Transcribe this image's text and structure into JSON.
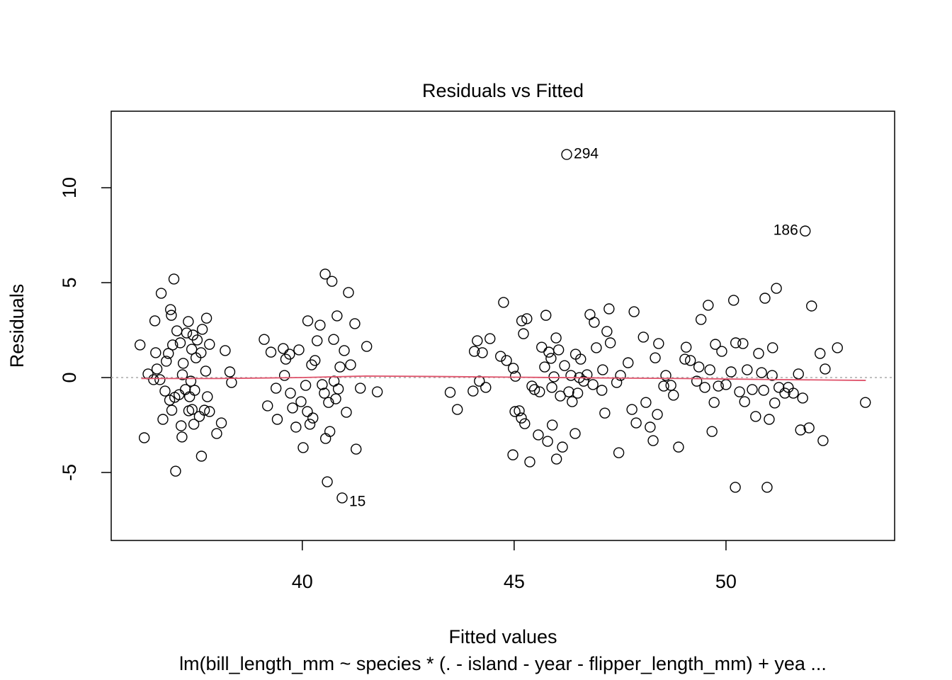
{
  "chart_data": {
    "type": "scatter",
    "title": "Residuals vs Fitted",
    "xlabel": "Fitted values",
    "ylabel": "Residuals",
    "subtitle": "lm(bill_length_mm ~ species * (. - island - year - flipper_length_mm) + yea ...",
    "xlim": [
      35.49,
      53.98
    ],
    "ylim": [
      -8.58,
      14.03
    ],
    "xticks": [
      40,
      45,
      50
    ],
    "yticks": [
      -5,
      0,
      5,
      10
    ],
    "hline": 0,
    "point_color": "#000000",
    "smooth": {
      "color": "#df536b",
      "x": [
        36.2,
        38,
        40,
        41.5,
        43,
        45,
        47,
        49,
        51,
        53.3
      ],
      "y": [
        -0.05,
        -0.05,
        0.0,
        0.08,
        0.06,
        0.02,
        -0.02,
        -0.05,
        -0.1,
        -0.15
      ]
    },
    "x": [
      36.17,
      36.27,
      36.36,
      36.49,
      36.52,
      36.54,
      36.57,
      36.64,
      36.67,
      36.71,
      36.76,
      36.79,
      36.84,
      36.87,
      36.89,
      36.91,
      36.92,
      36.94,
      36.97,
      36.99,
      37.01,
      37.04,
      37.09,
      37.12,
      37.14,
      37.16,
      37.17,
      37.19,
      37.24,
      37.27,
      37.31,
      37.32,
      37.34,
      37.37,
      37.39,
      37.4,
      37.42,
      37.44,
      37.46,
      37.49,
      37.52,
      37.57,
      37.61,
      37.62,
      37.64,
      37.69,
      37.72,
      37.74,
      37.76,
      37.81,
      37.81,
      37.98,
      38.09,
      38.18,
      38.29,
      38.33,
      39.1,
      39.18,
      39.26,
      39.38,
      39.41,
      39.55,
      39.58,
      39.61,
      39.7,
      39.72,
      39.77,
      39.85,
      39.92,
      39.97,
      40.02,
      40.08,
      40.12,
      40.13,
      40.18,
      40.22,
      40.25,
      40.3,
      40.35,
      40.42,
      40.47,
      40.52,
      40.54,
      40.55,
      40.59,
      40.62,
      40.65,
      40.7,
      40.74,
      40.75,
      40.79,
      40.82,
      40.85,
      40.89,
      40.94,
      40.99,
      41.04,
      41.09,
      41.14,
      41.24,
      41.27,
      41.37,
      41.52,
      41.77,
      43.49,
      43.66,
      44.03,
      44.06,
      44.13,
      44.18,
      44.25,
      44.33,
      44.43,
      44.68,
      44.75,
      44.82,
      44.97,
      44.98,
      45.02,
      45.03,
      45.12,
      45.17,
      45.18,
      45.22,
      45.25,
      45.3,
      45.37,
      45.42,
      45.48,
      45.57,
      45.6,
      45.65,
      45.72,
      45.75,
      45.79,
      45.82,
      45.87,
      45.89,
      45.9,
      45.94,
      45.99,
      46.0,
      46.05,
      46.09,
      46.14,
      46.19,
      46.24,
      46.29,
      46.34,
      46.37,
      46.44,
      46.45,
      46.5,
      46.54,
      46.57,
      46.64,
      46.72,
      46.79,
      46.86,
      46.89,
      46.94,
      47.07,
      47.09,
      47.14,
      47.19,
      47.24,
      47.27,
      47.42,
      47.47,
      47.51,
      47.69,
      47.78,
      47.83,
      47.88,
      48.05,
      48.11,
      48.21,
      48.28,
      48.33,
      48.38,
      48.41,
      48.53,
      48.58,
      48.7,
      48.76,
      48.88,
      49.03,
      49.06,
      49.16,
      49.31,
      49.36,
      49.41,
      49.5,
      49.58,
      49.62,
      49.67,
      49.72,
      49.75,
      49.82,
      49.9,
      50.0,
      50.12,
      50.18,
      50.22,
      50.23,
      50.32,
      50.4,
      50.44,
      50.5,
      50.62,
      50.7,
      50.77,
      50.84,
      50.89,
      50.92,
      50.97,
      51.02,
      51.09,
      51.1,
      51.15,
      51.19,
      51.25,
      51.39,
      51.47,
      51.59,
      51.71,
      51.76,
      51.81,
      51.87,
      51.96,
      52.02,
      52.22,
      52.29,
      52.34,
      52.63,
      53.29
    ],
    "y": [
      1.72,
      -3.17,
      0.19,
      -0.11,
      2.99,
      1.31,
      0.45,
      -0.11,
      4.44,
      -2.2,
      -0.71,
      0.86,
      1.27,
      -1.19,
      3.58,
      3.28,
      -1.72,
      1.72,
      5.19,
      -1.04,
      -4.93,
      2.46,
      -0.9,
      1.83,
      -2.54,
      -3.13,
      0.15,
      0.75,
      -0.63,
      2.35,
      2.95,
      -1.75,
      -1.01,
      -0.19,
      1.49,
      -1.68,
      2.24,
      -2.46,
      -0.67,
      1.04,
      1.98,
      -2.05,
      1.31,
      -4.14,
      2.54,
      -1.72,
      0.34,
      3.13,
      -1.01,
      1.75,
      -1.79,
      -2.95,
      -2.39,
      1.42,
      0.3,
      -0.26,
      2.01,
      -1.49,
      1.34,
      -0.56,
      -2.2,
      1.53,
      0.11,
      0.97,
      1.23,
      -0.82,
      -1.6,
      -2.61,
      1.46,
      -1.27,
      -3.69,
      -0.41,
      -1.79,
      2.99,
      -2.46,
      0.67,
      -2.13,
      0.9,
      1.94,
      2.76,
      -0.37,
      -0.82,
      5.45,
      -3.21,
      -5.49,
      -1.31,
      -2.84,
      5.07,
      2.01,
      -0.19,
      -1.12,
      3.25,
      -0.6,
      0.56,
      -6.34,
      1.42,
      -1.83,
      4.48,
      0.67,
      2.84,
      -3.77,
      -0.56,
      1.64,
      -0.75,
      -0.78,
      -1.68,
      -0.71,
      1.38,
      1.94,
      -0.19,
      1.31,
      -0.52,
      2.05,
      1.12,
      3.96,
      0.9,
      -4.07,
      0.49,
      -1.79,
      0.07,
      -1.75,
      -2.13,
      2.99,
      2.31,
      -2.43,
      3.1,
      -4.44,
      -0.45,
      -0.63,
      -3.02,
      -0.75,
      1.6,
      0.56,
      3.28,
      -3.36,
      1.34,
      1.01,
      -0.52,
      -2.5,
      0.04,
      2.09,
      -4.29,
      1.46,
      -0.97,
      -3.66,
      0.63,
      11.75,
      -0.75,
      0.11,
      -1.27,
      -2.95,
      1.23,
      -0.82,
      0.0,
      0.97,
      -0.19,
      0.15,
      3.32,
      -0.37,
      2.91,
      1.57,
      -0.67,
      0.41,
      -1.87,
      2.43,
      3.62,
      1.83,
      -0.26,
      -3.96,
      0.11,
      0.78,
      -1.68,
      3.47,
      -2.39,
      2.13,
      -1.31,
      -2.61,
      -3.32,
      1.04,
      -1.94,
      1.79,
      -0.45,
      0.11,
      -0.41,
      -0.93,
      -3.66,
      0.97,
      1.6,
      0.9,
      -0.19,
      0.56,
      3.06,
      -0.52,
      3.81,
      0.41,
      -2.84,
      -1.31,
      1.75,
      -0.45,
      1.38,
      -0.37,
      0.3,
      4.07,
      -5.78,
      1.83,
      -0.75,
      1.79,
      -1.27,
      0.41,
      -0.63,
      -2.05,
      1.27,
      0.26,
      -0.67,
      4.18,
      -5.78,
      -2.2,
      0.11,
      1.57,
      -1.34,
      4.7,
      -0.52,
      -0.82,
      -0.52,
      -0.82,
      0.19,
      -2.76,
      -1.08,
      7.72,
      -2.65,
      3.77,
      1.27,
      -3.32,
      0.45,
      1.57,
      -1.31
    ],
    "labels": [
      null,
      null,
      null,
      null,
      null,
      null,
      null,
      null,
      null,
      null,
      null,
      null,
      null,
      null,
      null,
      null,
      null,
      null,
      null,
      null,
      null,
      null,
      null,
      null,
      null,
      null,
      null,
      null,
      null,
      null,
      null,
      null,
      null,
      null,
      null,
      null,
      null,
      null,
      null,
      null,
      null,
      null,
      null,
      null,
      null,
      null,
      null,
      null,
      null,
      null,
      null,
      null,
      null,
      null,
      null,
      null,
      null,
      null,
      null,
      null,
      null,
      null,
      null,
      null,
      null,
      null,
      null,
      null,
      null,
      null,
      null,
      null,
      null,
      null,
      null,
      null,
      null,
      null,
      null,
      null,
      null,
      null,
      null,
      null,
      null,
      null,
      null,
      null,
      null,
      null,
      null,
      null,
      null,
      null,
      "15",
      null,
      null,
      null,
      null,
      null,
      null,
      null,
      null,
      null,
      null,
      null,
      null,
      null,
      null,
      null,
      null,
      null,
      null,
      null,
      null,
      null,
      null,
      null,
      null,
      null,
      null,
      null,
      null,
      null,
      null,
      null,
      null,
      null,
      null,
      null,
      null,
      null,
      null,
      null,
      null,
      null,
      null,
      null,
      null,
      null,
      null,
      null,
      null,
      null,
      null,
      null,
      "294",
      null,
      null,
      null,
      null,
      null,
      null,
      null,
      null,
      null,
      null,
      null,
      null,
      null,
      null,
      null,
      null,
      null,
      null,
      null,
      null,
      null,
      null,
      null,
      null,
      null,
      null,
      null,
      null,
      null,
      null,
      null,
      null,
      null,
      null,
      null,
      null,
      null,
      null,
      null,
      null,
      null,
      null,
      null,
      null,
      null,
      null,
      null,
      null,
      null,
      null,
      null,
      null,
      null,
      null,
      null,
      null,
      null,
      null,
      null,
      null,
      null,
      null,
      null,
      null,
      null,
      null,
      null,
      null,
      null,
      null,
      null,
      null,
      null,
      null,
      null,
      null,
      null,
      null,
      null,
      null,
      null,
      "186",
      null,
      null,
      null,
      null,
      null,
      null,
      null
    ]
  }
}
